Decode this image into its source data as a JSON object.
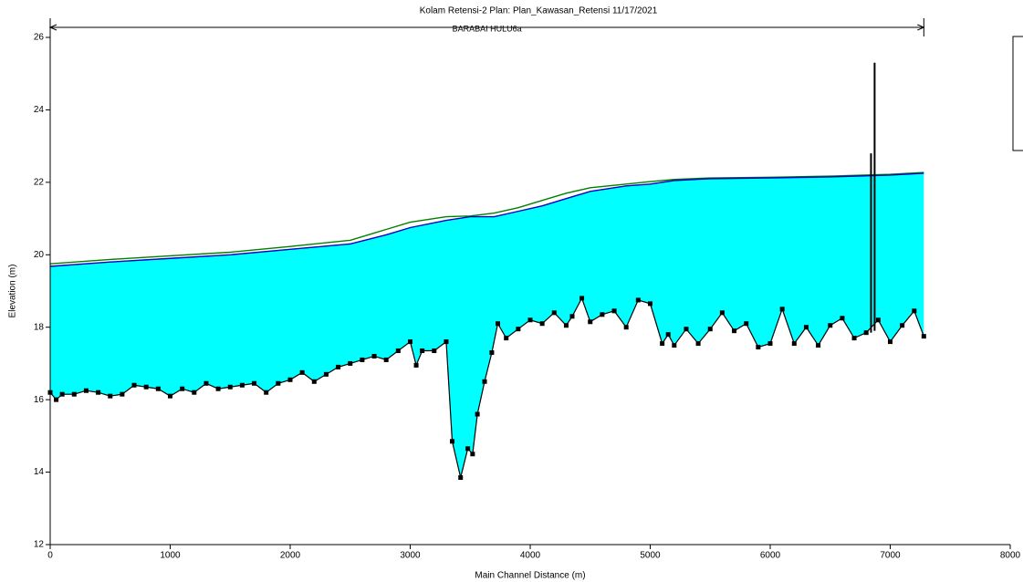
{
  "chart_data": {
    "type": "profile",
    "title": "Kolam Retensi-2      Plan: Plan_Kawasan_Retensi    11/17/2021",
    "x_label": "Main Channel Distance (m)",
    "y_label": "Elevation (m)",
    "reach": {
      "label": "BARABAI HULU6a",
      "x": [
        0,
        7280
      ]
    },
    "xlim": [
      0,
      8000
    ],
    "xticks": [
      0,
      1000,
      2000,
      3000,
      4000,
      5000,
      6000,
      7000,
      8000
    ],
    "ylim": [
      12,
      26
    ],
    "yticks": [
      12,
      14,
      16,
      18,
      20,
      22,
      24,
      26
    ],
    "fill_color": "#00ffff",
    "series": [
      {
        "color": "#008000",
        "x": [
          0,
          500,
          1000,
          1500,
          2000,
          2500,
          2800,
          3000,
          3300,
          3500,
          3700,
          3900,
          4100,
          4300,
          4500,
          4800,
          5000,
          5200,
          5500,
          6000,
          6500,
          7000,
          7280
        ],
        "values": [
          19.75,
          19.87,
          19.97,
          20.07,
          20.23,
          20.4,
          20.7,
          20.9,
          21.05,
          21.07,
          21.15,
          21.3,
          21.5,
          21.7,
          21.85,
          21.95,
          22.02,
          22.08,
          22.12,
          22.14,
          22.17,
          22.22,
          22.27
        ]
      },
      {
        "color": "#0000c0",
        "x": [
          0,
          500,
          1000,
          1500,
          2000,
          2500,
          2800,
          3000,
          3300,
          3500,
          3700,
          3900,
          4100,
          4300,
          4500,
          4800,
          5000,
          5200,
          5500,
          6000,
          6500,
          7000,
          7280
        ],
        "values": [
          19.68,
          19.8,
          19.9,
          20.0,
          20.15,
          20.3,
          20.55,
          20.75,
          20.95,
          21.05,
          21.05,
          21.2,
          21.35,
          21.55,
          21.75,
          21.9,
          21.95,
          22.05,
          22.1,
          22.12,
          22.15,
          22.2,
          22.25
        ]
      },
      {
        "color": "#000000",
        "markers": true,
        "x": [
          0,
          50,
          100,
          200,
          300,
          400,
          500,
          600,
          700,
          800,
          900,
          1000,
          1100,
          1200,
          1300,
          1400,
          1500,
          1600,
          1700,
          1800,
          1900,
          2000,
          2100,
          2200,
          2300,
          2400,
          2500,
          2600,
          2700,
          2800,
          2900,
          3000,
          3050,
          3100,
          3200,
          3300,
          3350,
          3420,
          3480,
          3520,
          3560,
          3620,
          3680,
          3730,
          3800,
          3900,
          4000,
          4100,
          4200,
          4300,
          4350,
          4430,
          4500,
          4600,
          4700,
          4800,
          4900,
          5000,
          5100,
          5150,
          5200,
          5300,
          5400,
          5500,
          5600,
          5700,
          5800,
          5900,
          6000,
          6100,
          6200,
          6300,
          6400,
          6500,
          6600,
          6700,
          6800,
          6900,
          7000,
          7100,
          7200,
          7280
        ],
        "values": [
          16.2,
          16.0,
          16.15,
          16.15,
          16.25,
          16.2,
          16.1,
          16.15,
          16.4,
          16.35,
          16.3,
          16.1,
          16.3,
          16.2,
          16.45,
          16.3,
          16.35,
          16.4,
          16.45,
          16.2,
          16.45,
          16.55,
          16.75,
          16.5,
          16.7,
          16.9,
          17.0,
          17.1,
          17.2,
          17.1,
          17.35,
          17.6,
          16.95,
          17.35,
          17.35,
          17.6,
          14.85,
          13.85,
          14.65,
          14.5,
          15.6,
          16.5,
          17.3,
          18.1,
          17.7,
          17.95,
          18.2,
          18.1,
          18.4,
          18.05,
          18.3,
          18.8,
          18.15,
          18.35,
          18.45,
          18.0,
          18.75,
          18.65,
          17.55,
          17.8,
          17.5,
          17.95,
          17.55,
          17.95,
          18.4,
          17.9,
          18.1,
          17.45,
          17.55,
          18.5,
          17.55,
          18.0,
          17.5,
          18.05,
          18.25,
          17.7,
          17.85,
          18.2,
          17.6,
          18.05,
          18.45,
          17.75
        ]
      }
    ],
    "structures": [
      {
        "x": 6840,
        "y": [
          17.85,
          22.8
        ]
      },
      {
        "x": 6870,
        "y": [
          17.9,
          25.3
        ]
      }
    ]
  }
}
